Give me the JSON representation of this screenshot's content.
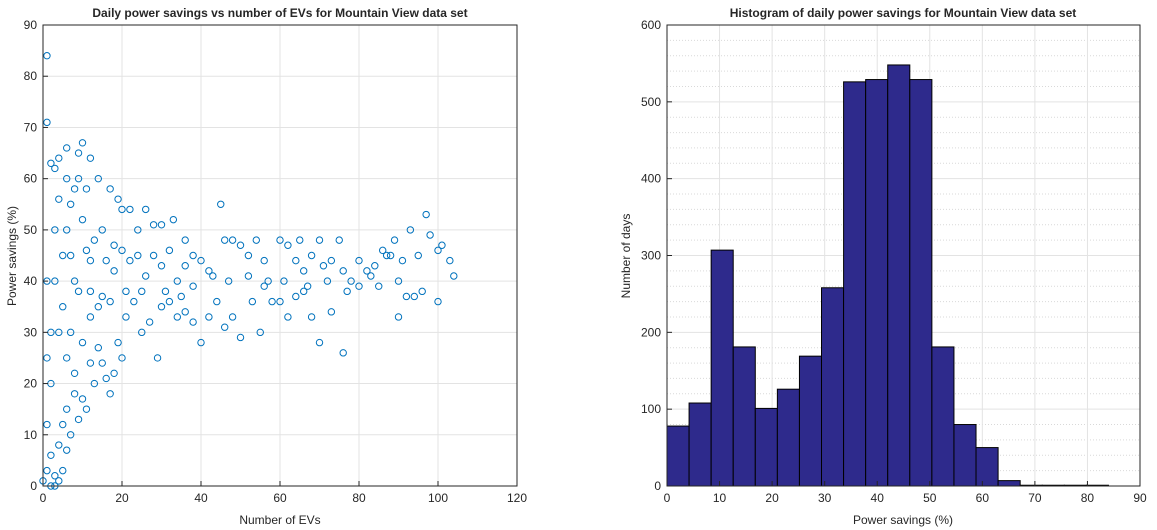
{
  "chart_data": [
    {
      "type": "scatter",
      "title": "Daily power savings vs number of EVs for Mountain View data set",
      "xlabel": "Number of EVs",
      "ylabel": "Power savings (%)",
      "xlim": [
        0,
        120
      ],
      "ylim": [
        0,
        90
      ],
      "xticks": [
        0,
        20,
        40,
        60,
        80,
        100,
        120
      ],
      "yticks": [
        0,
        10,
        20,
        30,
        40,
        50,
        60,
        70,
        80,
        90
      ],
      "grid": "major",
      "marker_color": "#0072BD",
      "points": [
        [
          1,
          84
        ],
        [
          1,
          71
        ],
        [
          2,
          63
        ],
        [
          3,
          62
        ],
        [
          4,
          64
        ],
        [
          6,
          66
        ],
        [
          9,
          65
        ],
        [
          10,
          67
        ],
        [
          12,
          64
        ],
        [
          14,
          60
        ],
        [
          17,
          58
        ],
        [
          19,
          56
        ],
        [
          20,
          54
        ],
        [
          22,
          54
        ],
        [
          24,
          50
        ],
        [
          26,
          54
        ],
        [
          28,
          51
        ],
        [
          30,
          51
        ],
        [
          33,
          52
        ],
        [
          36,
          48
        ],
        [
          38,
          45
        ],
        [
          40,
          44
        ],
        [
          42,
          42
        ],
        [
          45,
          55
        ],
        [
          46,
          48
        ],
        [
          48,
          48
        ],
        [
          50,
          47
        ],
        [
          52,
          45
        ],
        [
          54,
          48
        ],
        [
          56,
          44
        ],
        [
          57,
          40
        ],
        [
          60,
          48
        ],
        [
          62,
          47
        ],
        [
          64,
          44
        ],
        [
          65,
          48
        ],
        [
          66,
          42
        ],
        [
          68,
          45
        ],
        [
          70,
          48
        ],
        [
          71,
          43
        ],
        [
          73,
          44
        ],
        [
          75,
          48
        ],
        [
          76,
          42
        ],
        [
          78,
          40
        ],
        [
          80,
          44
        ],
        [
          82,
          42
        ],
        [
          84,
          43
        ],
        [
          86,
          46
        ],
        [
          87,
          45
        ],
        [
          89,
          48
        ],
        [
          91,
          44
        ],
        [
          93,
          50
        ],
        [
          95,
          45
        ],
        [
          97,
          53
        ],
        [
          98,
          49
        ],
        [
          100,
          46
        ],
        [
          101,
          47
        ],
        [
          103,
          44
        ],
        [
          104,
          41
        ],
        [
          100,
          36
        ],
        [
          96,
          38
        ],
        [
          94,
          37
        ],
        [
          92,
          37
        ],
        [
          90,
          33
        ],
        [
          88,
          45
        ],
        [
          85,
          39
        ],
        [
          80,
          39
        ],
        [
          76,
          26
        ],
        [
          73,
          34
        ],
        [
          70,
          28
        ],
        [
          68,
          33
        ],
        [
          66,
          38
        ],
        [
          64,
          37
        ],
        [
          62,
          33
        ],
        [
          60,
          36
        ],
        [
          58,
          36
        ],
        [
          55,
          30
        ],
        [
          53,
          36
        ],
        [
          50,
          29
        ],
        [
          48,
          33
        ],
        [
          46,
          31
        ],
        [
          44,
          36
        ],
        [
          42,
          33
        ],
        [
          40,
          28
        ],
        [
          38,
          32
        ],
        [
          36,
          34
        ],
        [
          34,
          33
        ],
        [
          32,
          36
        ],
        [
          30,
          35
        ],
        [
          29,
          25
        ],
        [
          27,
          32
        ],
        [
          25,
          38
        ],
        [
          23,
          36
        ],
        [
          21,
          33
        ],
        [
          20,
          25
        ],
        [
          19,
          28
        ],
        [
          18,
          22
        ],
        [
          17,
          18
        ],
        [
          16,
          21
        ],
        [
          15,
          24
        ],
        [
          14,
          27
        ],
        [
          13,
          20
        ],
        [
          12,
          24
        ],
        [
          11,
          15
        ],
        [
          10,
          17
        ],
        [
          9,
          13
        ],
        [
          8,
          18
        ],
        [
          7,
          10
        ],
        [
          6,
          7
        ],
        [
          5,
          12
        ],
        [
          5,
          3
        ],
        [
          4,
          1
        ],
        [
          3,
          2
        ],
        [
          2,
          6
        ],
        [
          2,
          0
        ],
        [
          1,
          3
        ],
        [
          1,
          12
        ],
        [
          0,
          1
        ],
        [
          3,
          0
        ],
        [
          4,
          8
        ],
        [
          6,
          15
        ],
        [
          8,
          22
        ],
        [
          10,
          28
        ],
        [
          12,
          33
        ],
        [
          15,
          37
        ],
        [
          18,
          42
        ],
        [
          22,
          44
        ],
        [
          26,
          41
        ],
        [
          30,
          43
        ],
        [
          34,
          40
        ],
        [
          38,
          39
        ],
        [
          43,
          41
        ],
        [
          47,
          40
        ],
        [
          52,
          41
        ],
        [
          56,
          39
        ],
        [
          61,
          40
        ],
        [
          67,
          39
        ],
        [
          72,
          40
        ],
        [
          77,
          38
        ],
        [
          83,
          41
        ],
        [
          90,
          40
        ],
        [
          5,
          45
        ],
        [
          6,
          50
        ],
        [
          7,
          55
        ],
        [
          8,
          40
        ],
        [
          9,
          38
        ],
        [
          10,
          52
        ],
        [
          11,
          46
        ],
        [
          12,
          44
        ],
        [
          13,
          48
        ],
        [
          15,
          50
        ],
        [
          16,
          44
        ],
        [
          18,
          47
        ],
        [
          20,
          46
        ],
        [
          24,
          45
        ],
        [
          28,
          45
        ],
        [
          32,
          46
        ],
        [
          36,
          43
        ],
        [
          4,
          30
        ],
        [
          5,
          35
        ],
        [
          6,
          25
        ],
        [
          7,
          30
        ],
        [
          8,
          58
        ],
        [
          9,
          60
        ],
        [
          11,
          58
        ],
        [
          3,
          40
        ],
        [
          3,
          50
        ],
        [
          2,
          20
        ],
        [
          2,
          30
        ],
        [
          1,
          25
        ],
        [
          1,
          40
        ],
        [
          4,
          56
        ],
        [
          6,
          60
        ],
        [
          7,
          45
        ],
        [
          12,
          38
        ],
        [
          14,
          35
        ],
        [
          17,
          36
        ],
        [
          21,
          38
        ],
        [
          25,
          30
        ],
        [
          31,
          38
        ],
        [
          35,
          37
        ]
      ]
    },
    {
      "type": "bar",
      "title": "Histogram of daily power savings for Mountain View data set",
      "xlabel": "Power savings (%)",
      "ylabel": "Number of days",
      "xlim": [
        0,
        90
      ],
      "ylim": [
        0,
        600
      ],
      "xticks": [
        0,
        10,
        20,
        30,
        40,
        50,
        60,
        70,
        80,
        90
      ],
      "yticks": [
        0,
        100,
        200,
        300,
        400,
        500,
        600
      ],
      "grid": "major-and-minor",
      "bar_color": "#2E2A8C",
      "bin_edges": [
        0,
        4.2,
        8.4,
        12.6,
        16.8,
        21.0,
        25.2,
        29.4,
        33.6,
        37.8,
        42.0,
        46.2,
        50.4,
        54.6,
        58.8,
        63.0,
        67.2,
        71.4,
        75.6,
        79.8,
        84.0
      ],
      "values": [
        78,
        108,
        307,
        181,
        101,
        126,
        169,
        258,
        526,
        529,
        548,
        529,
        181,
        80,
        50,
        7,
        1,
        1,
        1,
        1
      ]
    }
  ]
}
